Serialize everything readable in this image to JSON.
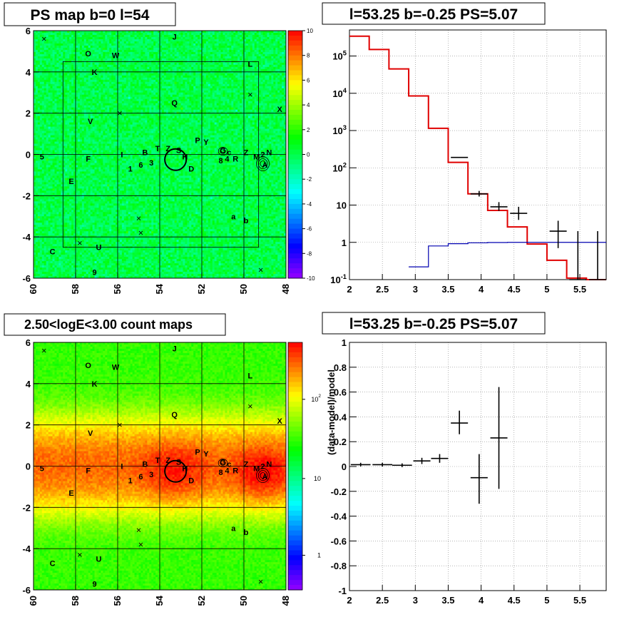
{
  "chart_data": [
    {
      "type": "heatmap",
      "title": "PS map b=0 l=54",
      "x_ticks": [
        "60",
        "58",
        "56",
        "54",
        "52",
        "50",
        "48"
      ],
      "y_ticks": [
        "6",
        "4",
        "2",
        "0",
        "-2",
        "-4",
        "-6"
      ],
      "xlim": [
        60,
        48
      ],
      "ylim": [
        -6,
        6
      ],
      "color_scale": "linear",
      "zlim": [
        -10,
        10
      ],
      "colorbar_ticks": [
        "10",
        "8",
        "6",
        "4",
        "2",
        "0",
        "-2",
        "-4",
        "-6",
        "-8",
        "-10"
      ],
      "pattern": "residual noise near zero",
      "source_labels": [
        {
          "t": "J",
          "l": 53.3,
          "b": 5.7
        },
        {
          "t": "O",
          "l": 57.4,
          "b": 4.9
        },
        {
          "t": "W",
          "l": 56.1,
          "b": 4.8
        },
        {
          "t": "K",
          "l": 57.1,
          "b": 4.0
        },
        {
          "t": "L",
          "l": 49.7,
          "b": 4.4
        },
        {
          "t": "Q",
          "l": 53.3,
          "b": 2.5
        },
        {
          "t": "X",
          "l": 48.3,
          "b": 2.2
        },
        {
          "t": "V",
          "l": 57.3,
          "b": 1.6
        },
        {
          "t": "P",
          "l": 52.2,
          "b": 0.7
        },
        {
          "t": "Y",
          "l": 51.8,
          "b": 0.6
        },
        {
          "t": "T",
          "l": 54.1,
          "b": 0.3
        },
        {
          "t": "Z",
          "l": 53.6,
          "b": 0.3
        },
        {
          "t": "S",
          "l": 53.1,
          "b": 0.2
        },
        {
          "t": "G",
          "l": 51.0,
          "b": 0.2
        },
        {
          "t": "c",
          "l": 50.7,
          "b": 0.1
        },
        {
          "t": "Z",
          "l": 49.9,
          "b": 0.1
        },
        {
          "t": "N",
          "l": 48.8,
          "b": 0.1
        },
        {
          "t": "B",
          "l": 54.7,
          "b": 0.1
        },
        {
          "t": "I",
          "l": 55.8,
          "b": 0.0
        },
        {
          "t": "2",
          "l": 49.1,
          "b": 0.0
        },
        {
          "t": "H",
          "l": 52.8,
          "b": -0.1
        },
        {
          "t": "5",
          "l": 59.6,
          "b": -0.1
        },
        {
          "t": "M",
          "l": 49.4,
          "b": -0.1
        },
        {
          "t": "4",
          "l": 50.8,
          "b": -0.2
        },
        {
          "t": "F",
          "l": 57.4,
          "b": -0.2
        },
        {
          "t": "R",
          "l": 50.4,
          "b": -0.2
        },
        {
          "t": "8",
          "l": 51.1,
          "b": -0.3
        },
        {
          "t": "3",
          "l": 54.4,
          "b": -0.4
        },
        {
          "t": "A",
          "l": 49.0,
          "b": -0.5
        },
        {
          "t": "6",
          "l": 54.9,
          "b": -0.5
        },
        {
          "t": "1",
          "l": 55.4,
          "b": -0.7
        },
        {
          "t": "D",
          "l": 52.5,
          "b": -0.7
        },
        {
          "t": "E",
          "l": 58.2,
          "b": -1.3
        },
        {
          "t": "a",
          "l": 50.5,
          "b": -3.0
        },
        {
          "t": "b",
          "l": 49.9,
          "b": -3.2
        },
        {
          "t": "U",
          "l": 56.9,
          "b": -4.5
        },
        {
          "t": "C",
          "l": 59.1,
          "b": -4.7
        },
        {
          "t": "9",
          "l": 57.1,
          "b": -5.7
        }
      ],
      "markers": [
        {
          "l": 59.5,
          "b": 5.6
        },
        {
          "l": 49.7,
          "b": 2.9
        },
        {
          "l": 55.9,
          "b": 2.0
        },
        {
          "l": 55.0,
          "b": -3.1
        },
        {
          "l": 54.9,
          "b": -3.8
        },
        {
          "l": 57.8,
          "b": -4.3
        },
        {
          "l": 49.2,
          "b": -5.6
        }
      ]
    },
    {
      "type": "line",
      "title": "l=53.25 b=-0.25 PS=5.07",
      "x_ticks": [
        "2",
        "2.5",
        "3",
        "3.5",
        "4",
        "4.5",
        "5",
        "5.5"
      ],
      "y_ticks": [
        "10^5",
        "10^4",
        "10^3",
        "10^2",
        "10",
        "1",
        "10^-1"
      ],
      "xlim": [
        2,
        5.9
      ],
      "ylim": [
        0.1,
        500000
      ],
      "y_scale": "log",
      "grid": true,
      "series": [
        {
          "color": "#e00000",
          "bins": [
            2.0,
            2.3,
            2.6,
            2.9,
            3.2,
            3.5,
            3.8,
            4.1,
            4.4,
            4.7,
            5.0,
            5.3,
            5.6,
            5.9
          ],
          "values": [
            340000,
            150000,
            45000,
            8500,
            1150,
            140,
            20,
            7.2,
            2.6,
            0.9,
            0.33,
            0.11,
            0.1
          ]
        },
        {
          "color": "#0000b0",
          "bins": [
            2.9,
            3.2,
            3.5,
            3.8,
            4.1,
            4.4,
            4.7,
            5.0,
            5.3,
            5.6,
            5.9
          ],
          "values": [
            0.22,
            0.8,
            0.92,
            0.97,
            0.99,
            1.0,
            1.0,
            1.0,
            1.0,
            1.0
          ]
        }
      ],
      "points": [
        {
          "x": 3.67,
          "y": 190,
          "xerr": 0.13,
          "ylo": 190,
          "yhi": 190
        },
        {
          "x": 3.97,
          "y": 20,
          "xerr": 0.13,
          "ylo": 17,
          "yhi": 24
        },
        {
          "x": 4.27,
          "y": 9,
          "xerr": 0.13,
          "ylo": 7,
          "yhi": 12
        },
        {
          "x": 4.57,
          "y": 6,
          "xerr": 0.13,
          "ylo": 4,
          "yhi": 9
        },
        {
          "x": 5.17,
          "y": 2.0,
          "xerr": 0.13,
          "ylo": 0.7,
          "yhi": 3.8
        },
        {
          "x": 5.47,
          "y": 0.1,
          "xerr": 0.13,
          "ylo": 0.1,
          "yhi": 2.0
        },
        {
          "x": 5.77,
          "y": 0.1,
          "xerr": 0.13,
          "ylo": 0.1,
          "yhi": 2.0
        }
      ]
    },
    {
      "type": "heatmap",
      "title": "2.50<logE<3.00 count maps",
      "x_ticks": [
        "60",
        "58",
        "56",
        "54",
        "52",
        "50",
        "48"
      ],
      "y_ticks": [
        "6",
        "4",
        "2",
        "0",
        "-2",
        "-4",
        "-6"
      ],
      "xlim": [
        60,
        48
      ],
      "ylim": [
        -6,
        6
      ],
      "color_scale": "log",
      "colorbar_ticks": [
        "10^2",
        "10",
        "1"
      ],
      "pattern": "bright band along b=0, hotspots near l=53.3 and l=49"
    },
    {
      "type": "scatter",
      "title": "l=53.25 b=-0.25 PS=5.07",
      "ylabel": "(data-model)/model",
      "x_ticks": [
        "2",
        "2.5",
        "3",
        "3.5",
        "4",
        "4.5",
        "5",
        "5.5"
      ],
      "y_ticks": [
        "1",
        "0.8",
        "0.6",
        "0.4",
        "0.2",
        "0",
        "-0.2",
        "-0.4",
        "-0.6",
        "-0.8",
        "-1"
      ],
      "xlim": [
        2,
        5.9
      ],
      "ylim": [
        -1,
        1
      ],
      "grid": true,
      "points": [
        {
          "x": 2.17,
          "y": 0.015,
          "xerr": 0.15,
          "ylo": 0.0,
          "yhi": 0.03
        },
        {
          "x": 2.5,
          "y": 0.015,
          "xerr": 0.15,
          "ylo": 0.0,
          "yhi": 0.03
        },
        {
          "x": 2.8,
          "y": 0.01,
          "xerr": 0.15,
          "ylo": -0.005,
          "yhi": 0.025
        },
        {
          "x": 3.1,
          "y": 0.045,
          "xerr": 0.13,
          "ylo": 0.02,
          "yhi": 0.07
        },
        {
          "x": 3.37,
          "y": 0.065,
          "xerr": 0.13,
          "ylo": 0.03,
          "yhi": 0.1
        },
        {
          "x": 3.67,
          "y": 0.35,
          "xerr": 0.13,
          "ylo": 0.26,
          "yhi": 0.45
        },
        {
          "x": 3.97,
          "y": -0.09,
          "xerr": 0.13,
          "ylo": -0.3,
          "yhi": 0.1
        },
        {
          "x": 4.27,
          "y": 0.23,
          "xerr": 0.13,
          "ylo": -0.18,
          "yhi": 0.64
        }
      ]
    }
  ]
}
